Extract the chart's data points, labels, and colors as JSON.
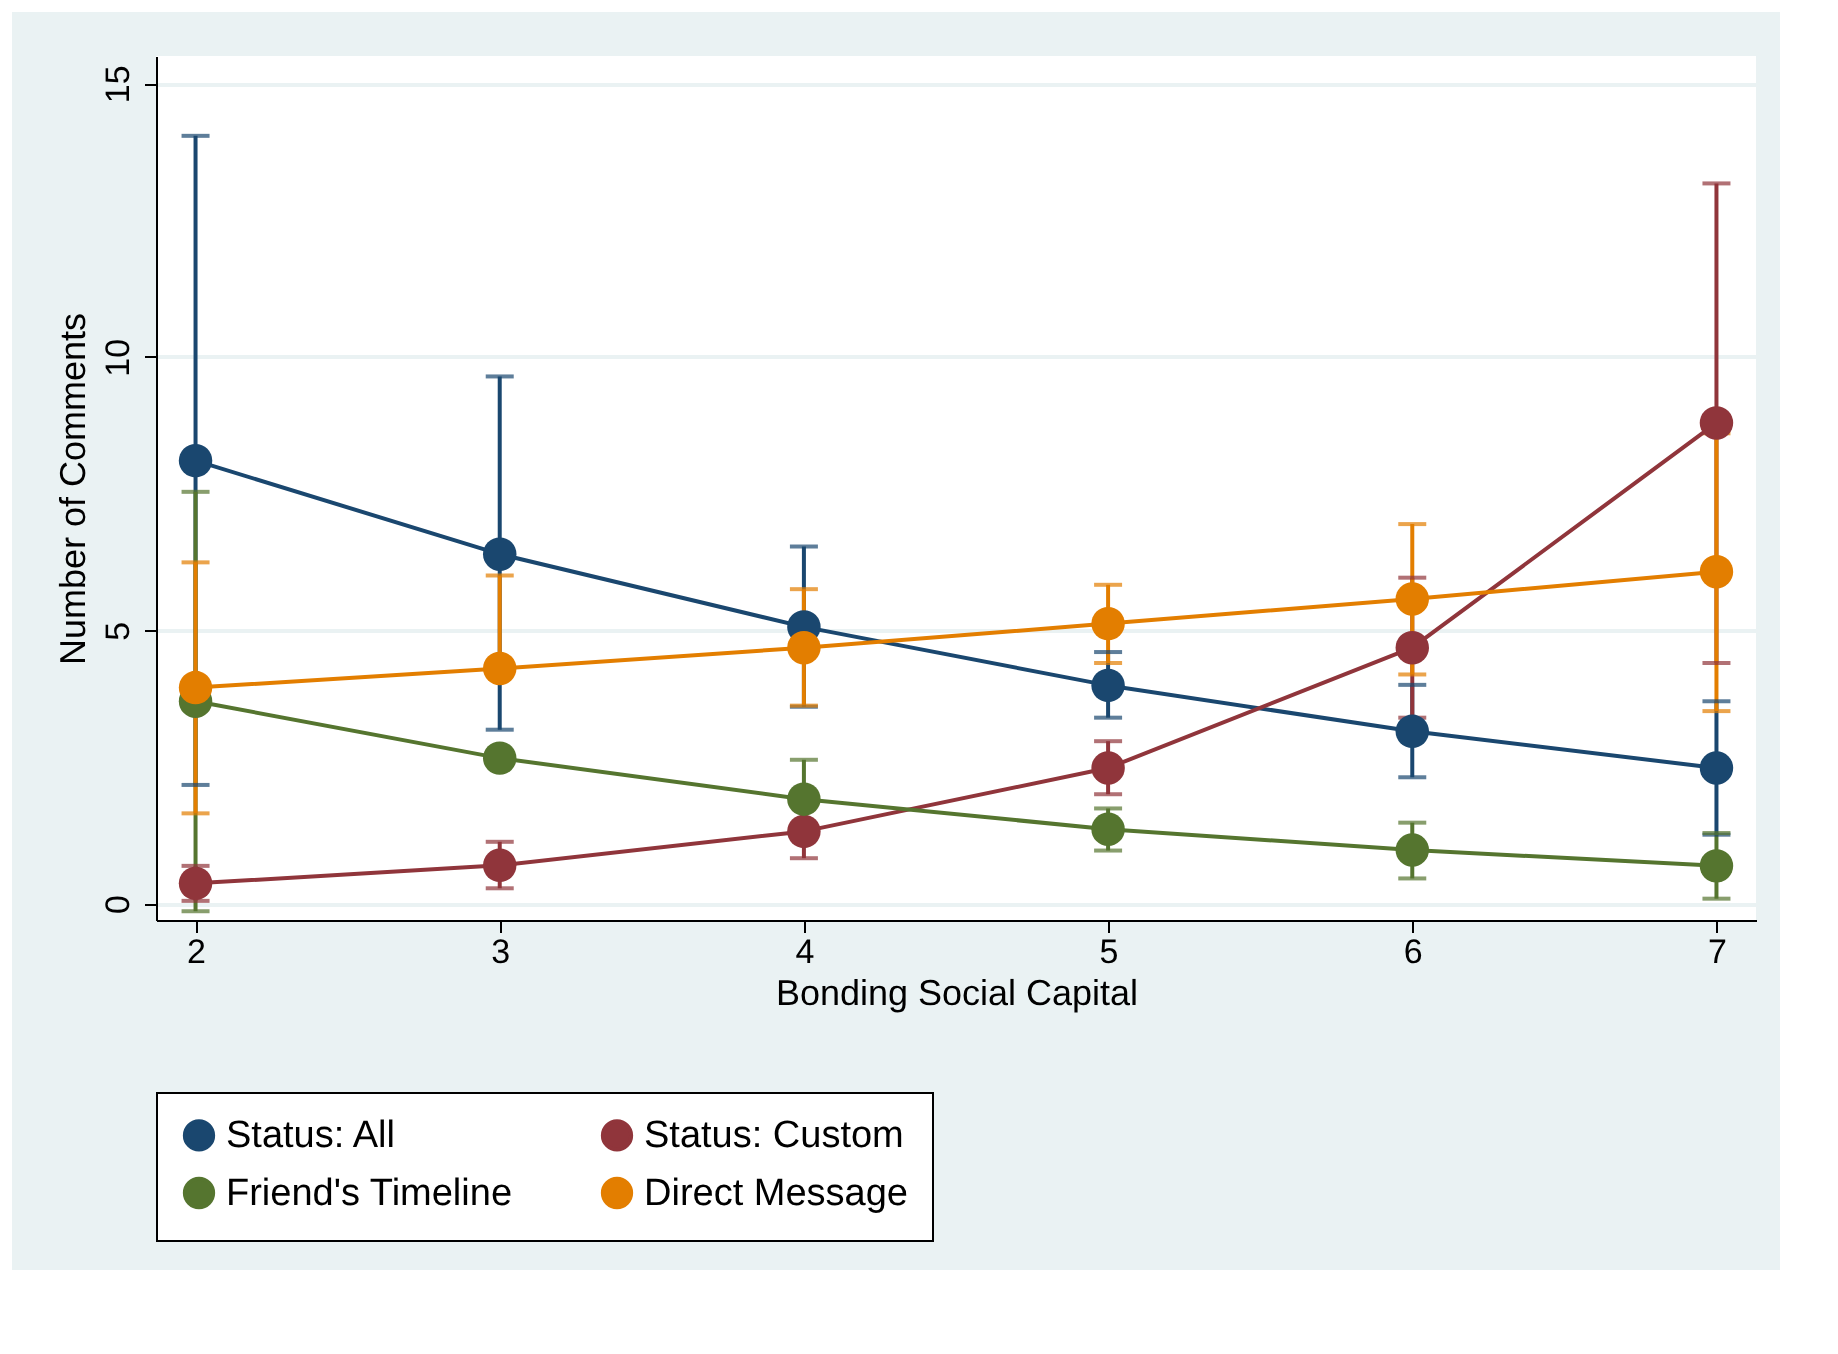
{
  "chart_data": {
    "type": "line",
    "xlabel": "Bonding Social Capital",
    "ylabel": "Number of Comments",
    "x": [
      2,
      3,
      4,
      5,
      6,
      7
    ],
    "xlim": [
      1.87,
      7.13
    ],
    "xticks": [
      2,
      3,
      4,
      5,
      6,
      7
    ],
    "ylim": [
      -0.3,
      15.5
    ],
    "yticks": [
      0,
      5,
      10,
      15
    ],
    "grid": "y",
    "legend": "bottom",
    "marker": "circle",
    "line_style": "solid",
    "series": [
      {
        "name": "Status: All",
        "color": "#1a476f",
        "values": [
          8.1,
          6.39,
          5.06,
          3.99,
          3.15,
          2.48
        ],
        "errors": [
          [
            2.17,
            14.04
          ],
          [
            3.18,
            9.64
          ],
          [
            3.6,
            6.53
          ],
          [
            3.4,
            4.6
          ],
          [
            2.31,
            4.0
          ],
          [
            1.26,
            3.7
          ]
        ]
      },
      {
        "name": "Status: Custom",
        "color": "#90353b",
        "values": [
          0.37,
          0.7,
          1.32,
          2.48,
          4.68,
          8.79
        ],
        "errors": [
          [
            0.05,
            0.69
          ],
          [
            0.28,
            1.13
          ],
          [
            0.83,
            1.32
          ],
          [
            2.0,
            2.97
          ],
          [
            3.4,
            5.96
          ],
          [
            4.4,
            13.17
          ]
        ]
      },
      {
        "name": "Friend's Timeline",
        "color": "#55752f",
        "values": [
          3.7,
          2.66,
          1.91,
          1.36,
          0.98,
          0.69
        ],
        "errors": [
          [
            -0.14,
            7.53
          ],
          null,
          [
            1.91,
            2.63
          ],
          [
            0.97,
            1.74
          ],
          [
            0.46,
            1.48
          ],
          [
            0.09,
            1.29
          ]
        ]
      },
      {
        "name": "Direct Message",
        "color": "#e37e00",
        "values": [
          3.95,
          4.3,
          4.68,
          5.12,
          5.57,
          6.07
        ],
        "errors": [
          [
            1.65,
            6.24
          ],
          [
            4.3,
            6.0
          ],
          [
            3.62,
            5.75
          ],
          [
            4.4,
            5.83
          ],
          [
            4.19,
            6.94
          ],
          [
            3.52,
            8.6
          ]
        ]
      }
    ]
  }
}
